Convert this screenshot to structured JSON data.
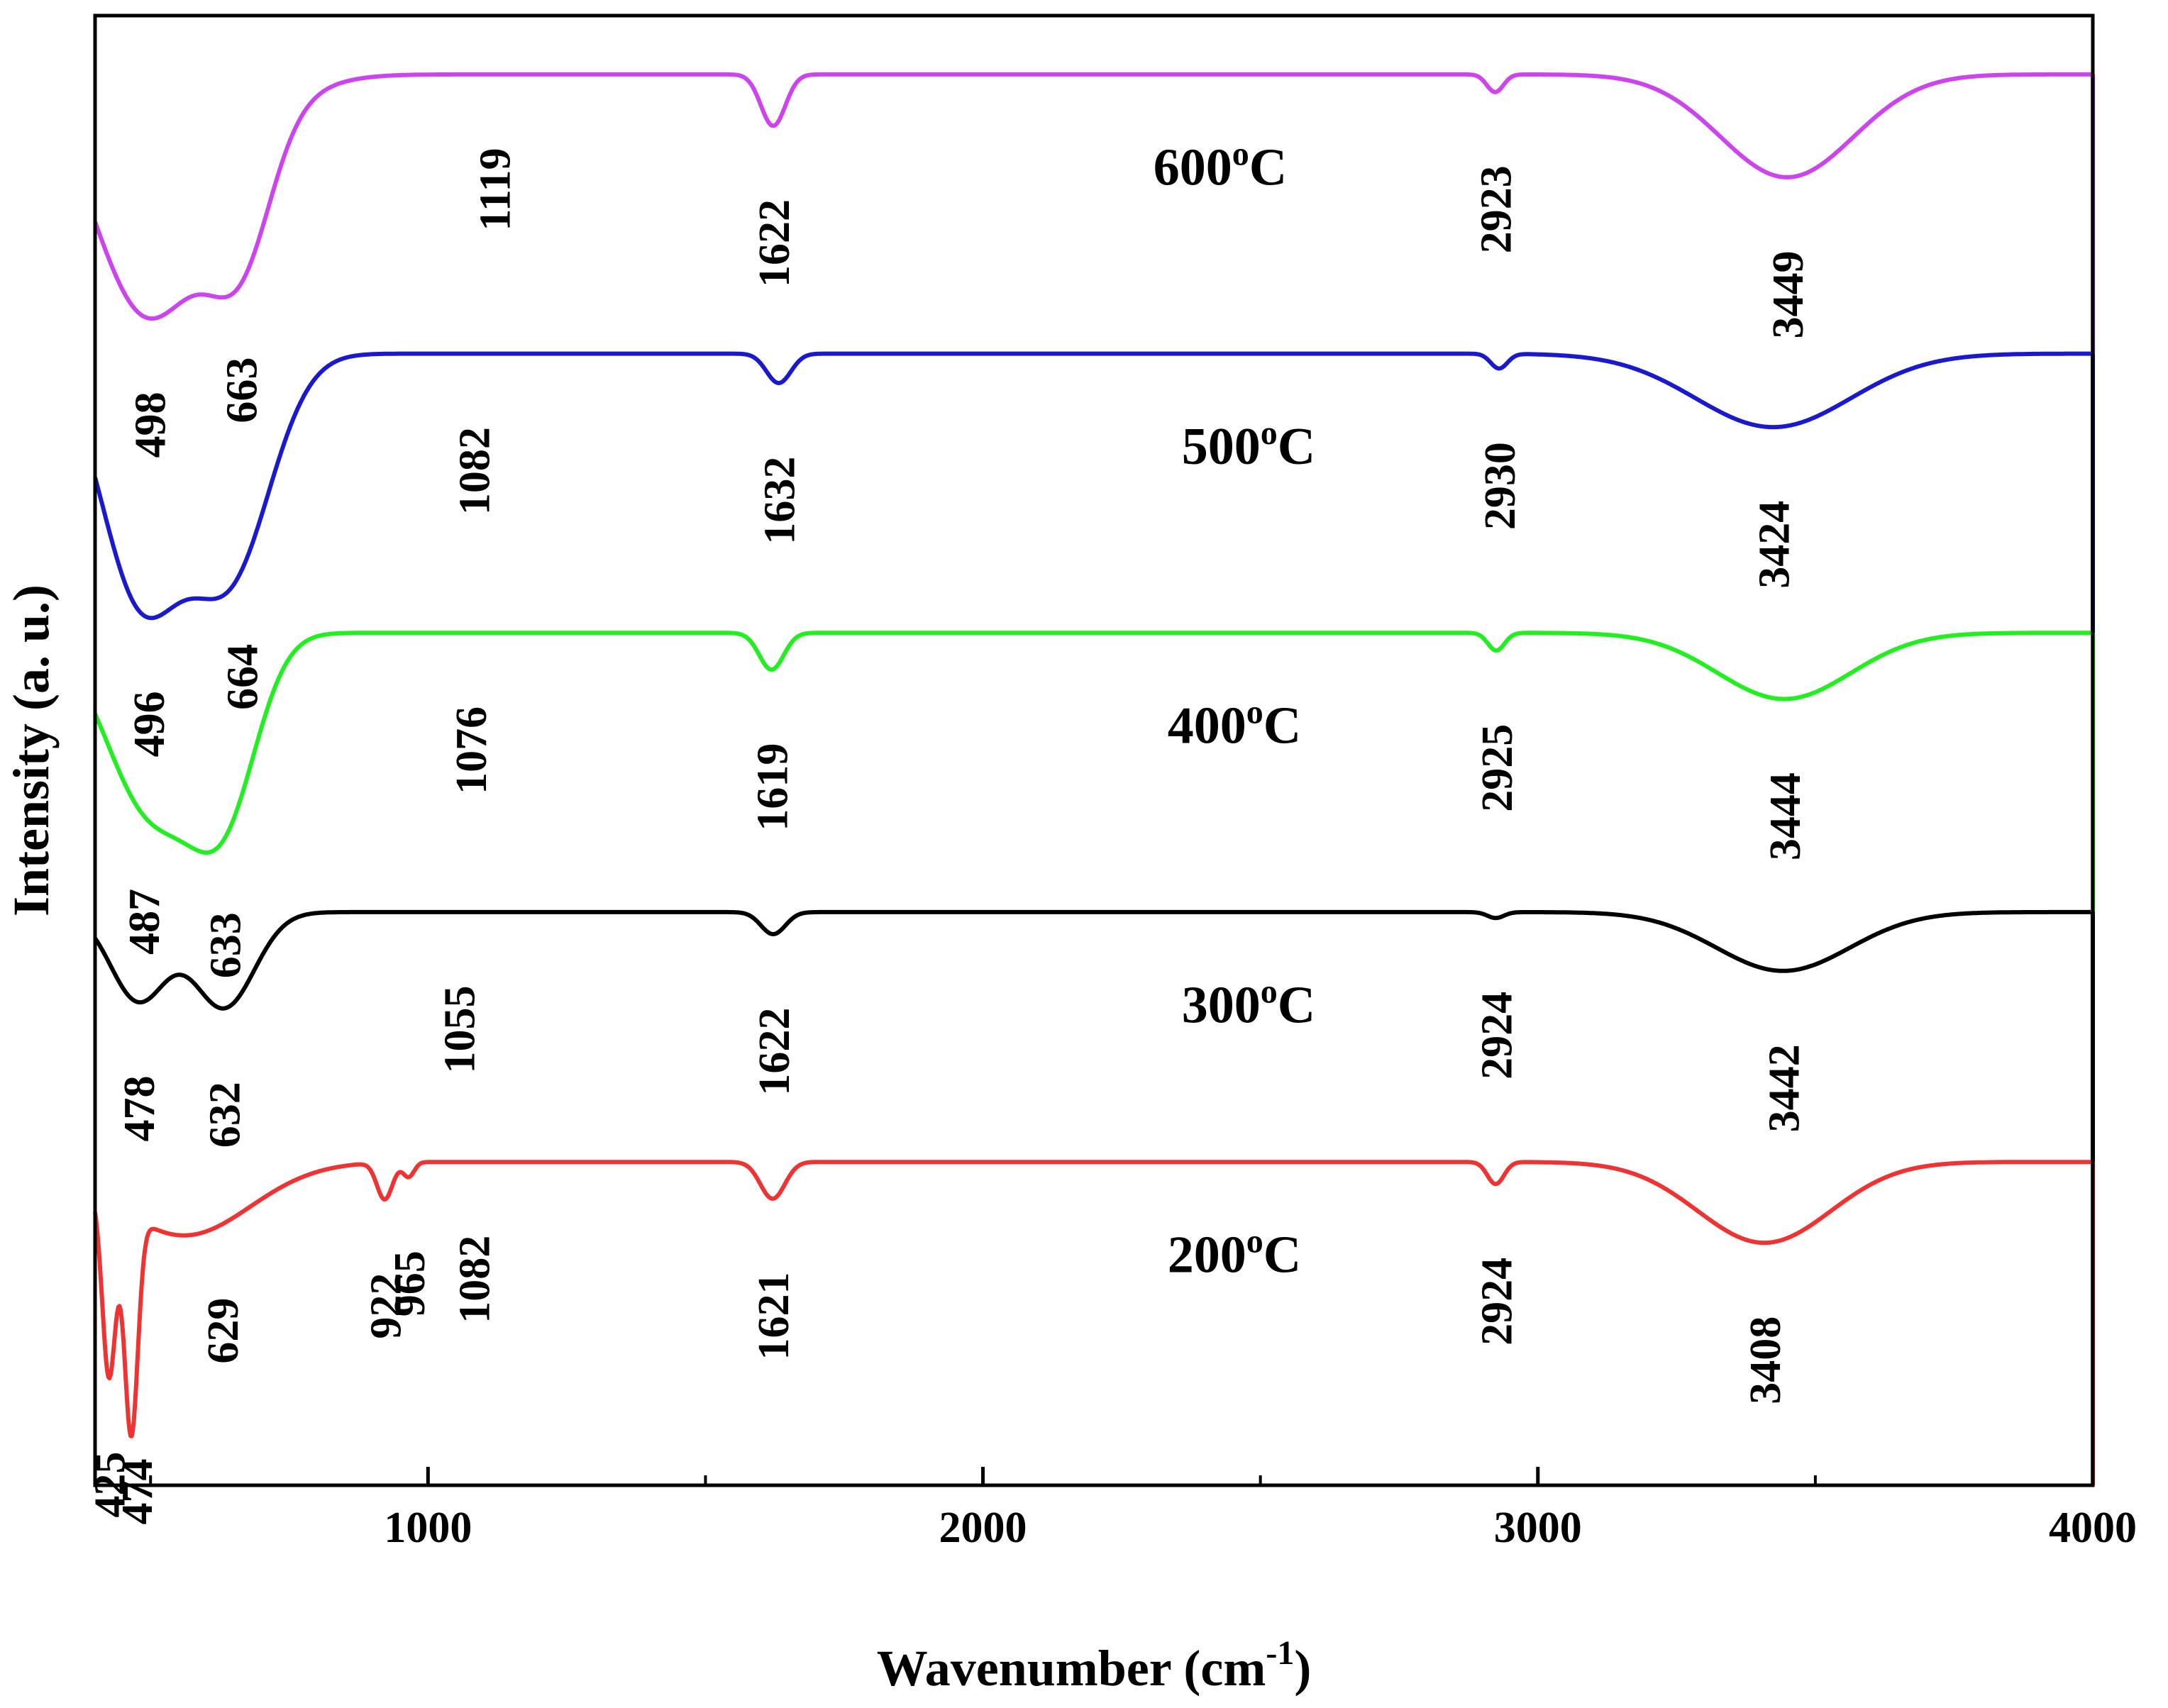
{
  "chart_data": {
    "type": "line",
    "title": "",
    "xlabel": "Wavenumber (cm",
    "xlabel_sup": "-1",
    "xlabel_close": ")",
    "ylabel": "Intensity (a. u.)",
    "xlim": [
      400,
      4000
    ],
    "xticks": [
      1000,
      2000,
      3000,
      4000
    ],
    "y_ticks_shown": false,
    "series": [
      {
        "name": "600°C",
        "label_main": "600",
        "label_sup": "o",
        "label_tail": "C",
        "color": "#cc44ee",
        "baseline": 0.96,
        "bands": [
          {
            "x": 480,
            "depth": 0.12,
            "width": 90
          },
          {
            "x": 663,
            "depth": 0.08,
            "width": 55
          },
          {
            "x": 580,
            "depth": 0.06,
            "width": 120
          },
          {
            "x": 1622,
            "depth": 0.035,
            "width": 22
          },
          {
            "x": 2923,
            "depth": 0.012,
            "width": 15
          },
          {
            "x": 3449,
            "depth": 0.07,
            "width": 120
          }
        ],
        "peaks": [
          {
            "x": 498,
            "text": "498"
          },
          {
            "x": 663,
            "text": "663"
          },
          {
            "x": 1119,
            "text": "1119"
          },
          {
            "x": 1622,
            "text": "1622"
          },
          {
            "x": 2923,
            "text": "2923"
          },
          {
            "x": 3449,
            "text": "3449"
          }
        ]
      },
      {
        "name": "500°C",
        "label_main": "500",
        "label_sup": "o",
        "label_tail": "C",
        "color": "#1a1acc",
        "baseline": 0.77,
        "bands": [
          {
            "x": 480,
            "depth": 0.16,
            "width": 70
          },
          {
            "x": 640,
            "depth": 0.15,
            "width": 75
          },
          {
            "x": 1632,
            "depth": 0.02,
            "width": 22
          },
          {
            "x": 2930,
            "depth": 0.01,
            "width": 15
          },
          {
            "x": 3424,
            "depth": 0.05,
            "width": 140
          }
        ],
        "peaks": [
          {
            "x": 496,
            "text": "496"
          },
          {
            "x": 664,
            "text": "664"
          },
          {
            "x": 1082,
            "text": "1082"
          },
          {
            "x": 1632,
            "text": "1632"
          },
          {
            "x": 2930,
            "text": "2930"
          },
          {
            "x": 3424,
            "text": "3424"
          }
        ]
      },
      {
        "name": "400°C",
        "label_main": "400",
        "label_sup": "o",
        "label_tail": "C",
        "color": "#22ee22",
        "baseline": 0.58,
        "bands": [
          {
            "x": 500,
            "depth": 0.12,
            "width": 80
          },
          {
            "x": 633,
            "depth": 0.11,
            "width": 60
          },
          {
            "x": 1619,
            "depth": 0.025,
            "width": 22
          },
          {
            "x": 2925,
            "depth": 0.012,
            "width": 15
          },
          {
            "x": 3444,
            "depth": 0.045,
            "width": 120
          }
        ],
        "peaks": [
          {
            "x": 487,
            "text": "487"
          },
          {
            "x": 633,
            "text": "633"
          },
          {
            "x": 1076,
            "text": "1076"
          },
          {
            "x": 1619,
            "text": "1619"
          },
          {
            "x": 2925,
            "text": "2925"
          },
          {
            "x": 3444,
            "text": "3444"
          }
        ]
      },
      {
        "name": "300°C",
        "label_main": "300",
        "label_sup": "o",
        "label_tail": "C",
        "color": "#000000",
        "baseline": 0.39,
        "bands": [
          {
            "x": 478,
            "depth": 0.06,
            "width": 50
          },
          {
            "x": 632,
            "depth": 0.065,
            "width": 55
          },
          {
            "x": 1622,
            "depth": 0.015,
            "width": 22
          },
          {
            "x": 2924,
            "depth": 0.004,
            "width": 15
          },
          {
            "x": 3442,
            "depth": 0.04,
            "width": 120
          }
        ],
        "peaks": [
          {
            "x": 478,
            "text": "478"
          },
          {
            "x": 632,
            "text": "632"
          },
          {
            "x": 1055,
            "text": "1055"
          },
          {
            "x": 1622,
            "text": "1622"
          },
          {
            "x": 2924,
            "text": "2924"
          },
          {
            "x": 3442,
            "text": "3442"
          }
        ]
      },
      {
        "name": "200°C",
        "label_main": "200",
        "label_sup": "o",
        "label_tail": "C",
        "color": "#ee3333",
        "baseline": 0.22,
        "bands": [
          {
            "x": 425,
            "depth": 0.12,
            "width": 12
          },
          {
            "x": 465,
            "depth": 0.15,
            "width": 12
          },
          {
            "x": 560,
            "depth": 0.05,
            "width": 120
          },
          {
            "x": 922,
            "depth": 0.025,
            "width": 14
          },
          {
            "x": 965,
            "depth": 0.01,
            "width": 10
          },
          {
            "x": 1621,
            "depth": 0.025,
            "width": 22
          },
          {
            "x": 2924,
            "depth": 0.015,
            "width": 15
          },
          {
            "x": 3408,
            "depth": 0.055,
            "width": 120
          }
        ],
        "peaks": [
          {
            "x": 425,
            "text": "425"
          },
          {
            "x": 474,
            "text": "474"
          },
          {
            "x": 629,
            "text": "629"
          },
          {
            "x": 922,
            "text": "922"
          },
          {
            "x": 965,
            "text": "965"
          },
          {
            "x": 1082,
            "text": "1082"
          },
          {
            "x": 1621,
            "text": "1621"
          },
          {
            "x": 2924,
            "text": "2924"
          },
          {
            "x": 3408,
            "text": "3408"
          }
        ]
      }
    ]
  }
}
